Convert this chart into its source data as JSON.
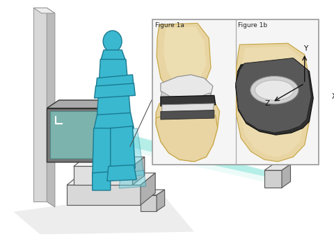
{
  "bg_color": "#ffffff",
  "figure_size": [
    4.8,
    3.44
  ],
  "dpi": 100,
  "bone_color": "#e8d5a3",
  "bone_edge": "#c8a84a",
  "bone_highlight": "#f5ecc8",
  "teal_beam": "#50d8c8",
  "teal_light": "#a0ede0",
  "human_fill": "#3ab8d0",
  "human_stroke": "#1a7a90",
  "panel_bg": "#f8f8f8",
  "panel_border": "#aaaaaa",
  "gray_light": "#cccccc",
  "gray_mid": "#999999",
  "gray_dark": "#666666",
  "gray_darkest": "#333333",
  "pole_front": "#d8d8d8",
  "pole_side": "#bbbbbb",
  "frame_front": "#888888",
  "frame_top": "#aaaaaa",
  "frame_side": "#999999",
  "screen_color": "#80c8c0",
  "step_top": "#f0f0f0",
  "step_front": "#d8d8d8",
  "step_side": "#b8b8b8",
  "cube_top": "#e8e8e8",
  "cube_front": "#d0d0d0",
  "cube_side": "#b0b0b0",
  "dark_comp": "#404040",
  "mid_comp": "#606060",
  "white_comp": "#e0e0e0",
  "axis_color": "#111111",
  "label_fs": 6.5,
  "axis_fs": 7.5,
  "panel_a_label": "Figure 1a",
  "panel_b_label": "Figure 1b"
}
